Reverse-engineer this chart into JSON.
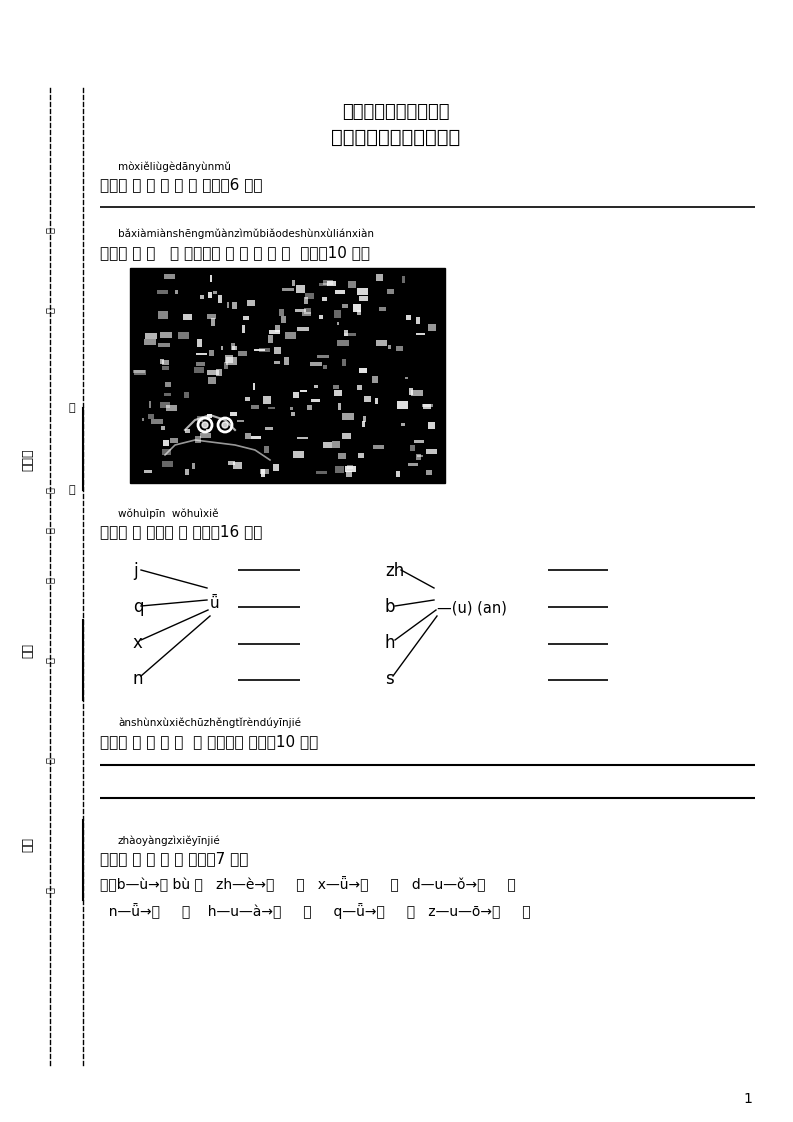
{
  "title1": "朝凤路学区一年级语文",
  "title2": "第一学期期中质量检测卷",
  "bg_color": "#ffffff",
  "text_color": "#000000",
  "page_number": "1",
  "section1_pinyin": "mòxiěliùgèdānyùnmǔ",
  "section1_text": "一、默 写 六 个 单 韵 母。（6 分）",
  "section2_pinyin": "bǎxiàmiànshēngmǔànzìmǔbiǎodeshùnxùliánxiàn",
  "section2_text": "二、把 下 面   声 母按字母 表 的 顺 序 连  线。（10 分）",
  "section3_pinyin": "wǒhuìpīn  wǒhuìxiě",
  "section3_text": "三、我 会 拼，我 会 写。（16 分）",
  "section4_pinyin": "ànshùnxùxiěchūzhěngtǐrèndúyīnjié",
  "section4_text": "四、按 顺 序 写 出  整 体认读音 节。（10 分）",
  "section5_pinyin": "zhàoyàngzìxiěyīnjié",
  "section5_text": "五、照 样 子 写 音 节。（7 分）",
  "sidebar_zuowei": "座位号",
  "sidebar_banji": "班级",
  "sidebar_xingming": "姓名",
  "sidebar_ji": "级",
  "sidebar_ding": "订",
  "sidebar_zhuang": "装",
  "sidebar_bu": "不",
  "sidebar_nao": "要",
  "sidebar_nei": "内",
  "sidebar_an": "答",
  "sidebar_an2": "客"
}
